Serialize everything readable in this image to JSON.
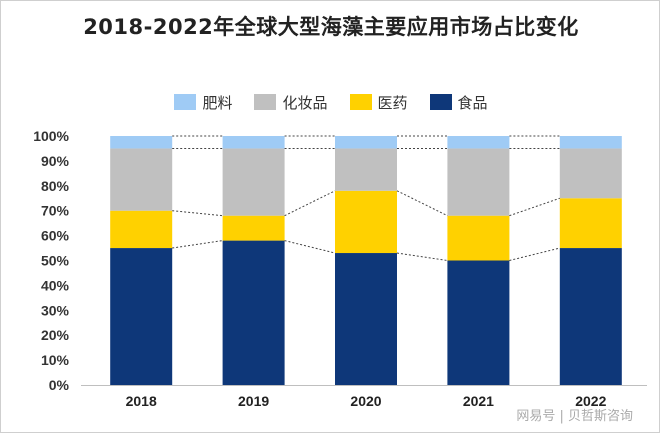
{
  "chart_data": {
    "type": "bar",
    "stacked": true,
    "title": "2018-2022年全球大型海藻主要应用市场占比变化",
    "categories": [
      "2018",
      "2019",
      "2020",
      "2021",
      "2022"
    ],
    "series": [
      {
        "name": "食品",
        "color": "#0e3779",
        "values": [
          55,
          58,
          53,
          50,
          55
        ]
      },
      {
        "name": "医药",
        "color": "#ffd100",
        "values": [
          15,
          10,
          25,
          18,
          20
        ]
      },
      {
        "name": "化妆品",
        "color": "#c0c0c0",
        "values": [
          25,
          27,
          17,
          27,
          20
        ]
      },
      {
        "name": "肥料",
        "color": "#9fcbf5",
        "values": [
          5,
          5,
          5,
          5,
          5
        ]
      }
    ],
    "legend_order": [
      "肥料",
      "化妆品",
      "医药",
      "食品"
    ],
    "y_ticks": [
      "0%",
      "10%",
      "20%",
      "30%",
      "40%",
      "50%",
      "60%",
      "70%",
      "80%",
      "90%",
      "100%"
    ],
    "ylim": [
      0,
      100
    ],
    "xlabel": "",
    "ylabel": "",
    "legend_position": "top-center",
    "connector_lines": "dashed"
  },
  "watermark": "网易号 | 贝哲斯咨询"
}
